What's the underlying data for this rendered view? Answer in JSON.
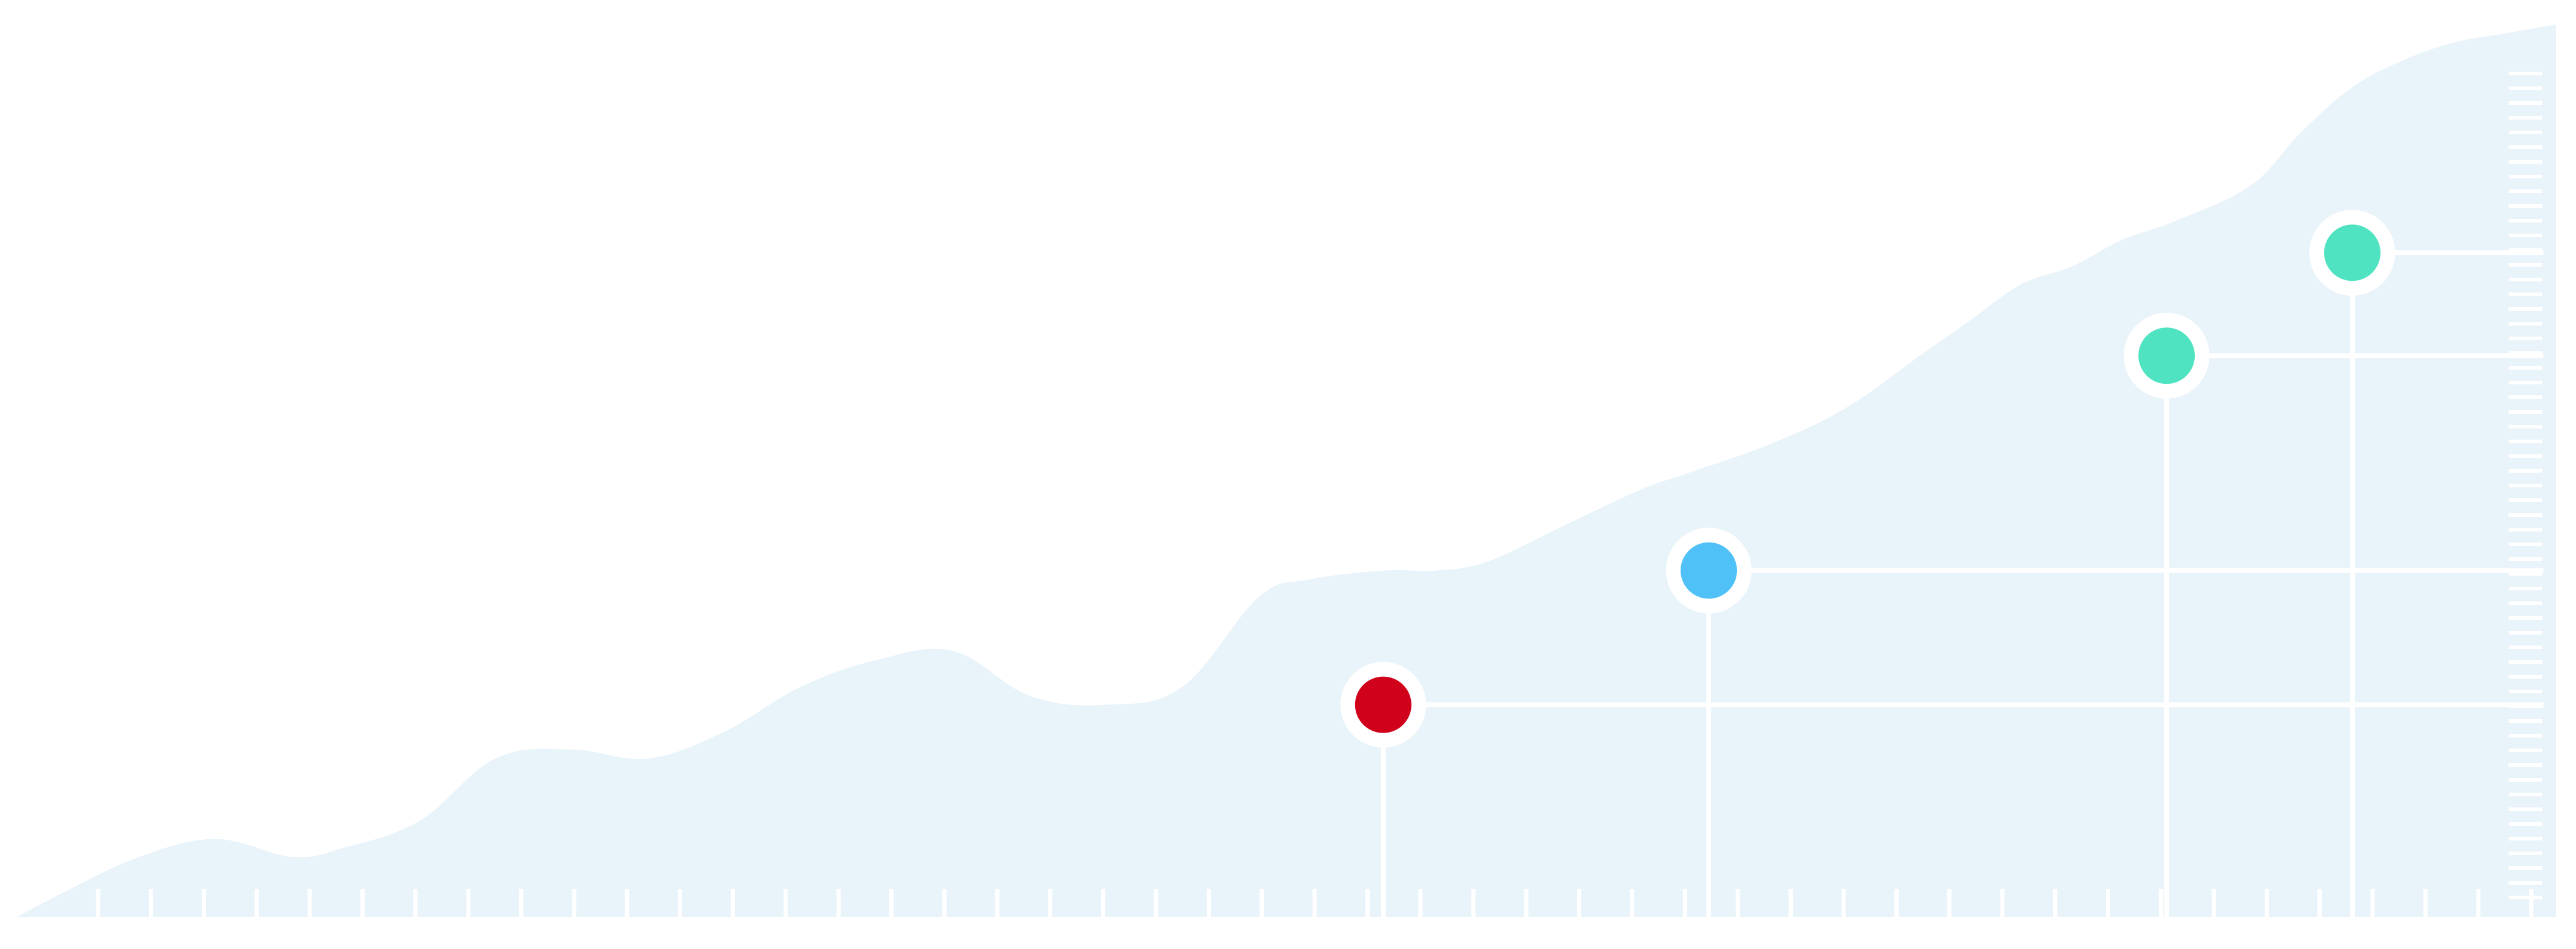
{
  "chart_data": {
    "type": "area",
    "title": "",
    "xlabel": "",
    "ylabel": "",
    "grid": false,
    "legend": "none",
    "xlim": [
      0,
      100
    ],
    "ylim": [
      0,
      100
    ],
    "series": [
      {
        "x": [
          0,
          2,
          5,
          8,
          11,
          13,
          16,
          19,
          22,
          25,
          28,
          31,
          34,
          37,
          40,
          43,
          46,
          49,
          51,
          54,
          56,
          58,
          61,
          64,
          66,
          69,
          72,
          75,
          77,
          79,
          81,
          83,
          85,
          88,
          90,
          92,
          94,
          96,
          98,
          100
        ],
        "values": [
          0,
          3,
          7,
          9,
          7,
          8,
          11,
          18,
          19,
          18,
          21,
          26,
          29,
          30,
          25,
          24,
          26,
          36,
          38,
          39,
          39,
          40,
          44,
          48,
          50,
          53,
          57,
          63,
          67,
          71,
          73,
          76,
          78,
          82,
          88,
          93,
          96,
          98,
          99,
          100
        ],
        "color": "#e8f3fa"
      }
    ],
    "markers": [
      {
        "x": 53.9,
        "y": 24.0,
        "color": "#d0021b"
      },
      {
        "x": 66.7,
        "y": 39.0,
        "color": "#4fc1f7"
      },
      {
        "x": 84.7,
        "y": 63.0,
        "color": "#50e3c2"
      },
      {
        "x": 92.0,
        "y": 74.5,
        "color": "#50e3c2"
      }
    ]
  },
  "colors": {
    "area_fill": "#e8f3fa",
    "grid_lines": "#ffffff",
    "marker_ring": "#ffffff",
    "red": "#d0021b",
    "blue": "#4fc1f7",
    "teal": "#50e3c2"
  }
}
